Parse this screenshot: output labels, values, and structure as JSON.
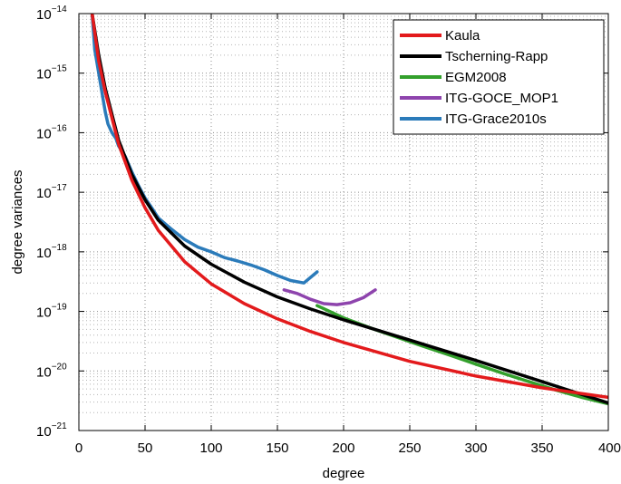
{
  "chart_data": {
    "type": "line",
    "xlabel": "degree",
    "ylabel": "degree variances",
    "xlim": [
      0,
      400
    ],
    "ylim_exponent": [
      -21,
      -14
    ],
    "y_scale": "log",
    "grid": true,
    "legend_placement": "top-right",
    "x_ticks": [
      "0",
      "50",
      "100",
      "150",
      "200",
      "250",
      "300",
      "350",
      "400"
    ],
    "y_ticks": [
      {
        "base": "10",
        "exp": "−14"
      },
      {
        "base": "10",
        "exp": "−15"
      },
      {
        "base": "10",
        "exp": "−16"
      },
      {
        "base": "10",
        "exp": "−17"
      },
      {
        "base": "10",
        "exp": "−18"
      },
      {
        "base": "10",
        "exp": "−19"
      },
      {
        "base": "10",
        "exp": "−20"
      },
      {
        "base": "10",
        "exp": "−21"
      }
    ],
    "series": [
      {
        "name": "Kaula",
        "color": "#e31a1c",
        "x": [
          10,
          15,
          20,
          30,
          40,
          50,
          60,
          80,
          100,
          125,
          150,
          175,
          200,
          250,
          300,
          350,
          400
        ],
        "y": [
          1e-14,
          1.6e-15,
          4.8e-16,
          6.5e-17,
          1.6e-17,
          5.5e-18,
          2.3e-18,
          6.8e-19,
          2.9e-19,
          1.35e-19,
          7.5e-20,
          4.6e-20,
          3e-20,
          1.45e-20,
          8.2e-21,
          5.2e-21,
          3.6e-21
        ]
      },
      {
        "name": "Tscherning-Rapp",
        "color": "#000000",
        "x": [
          10,
          15,
          20,
          30,
          40,
          50,
          60,
          80,
          100,
          125,
          150,
          175,
          200,
          250,
          300,
          350,
          400
        ],
        "y": [
          1e-14,
          2e-15,
          5.5e-16,
          7.5e-17,
          2e-17,
          7.5e-18,
          3.4e-18,
          1.25e-18,
          6.2e-19,
          3.1e-19,
          1.75e-19,
          1.1e-19,
          7.2e-20,
          3.3e-20,
          1.5e-20,
          6.6e-21,
          2.9e-21
        ]
      },
      {
        "name": "EGM2008",
        "color": "#33a02c",
        "x": [
          180,
          200,
          220,
          240,
          260,
          280,
          300,
          320,
          340,
          360,
          380,
          400
        ],
        "y": [
          1.25e-19,
          7.8e-20,
          5.3e-20,
          3.7e-20,
          2.6e-20,
          1.85e-20,
          1.3e-20,
          9.2e-21,
          6.6e-21,
          4.8e-21,
          3.6e-21,
          2.8e-21
        ]
      },
      {
        "name": "ITG-GOCE_MOP1",
        "color": "#8e44ad",
        "x": [
          155,
          165,
          175,
          185,
          195,
          205,
          215,
          224
        ],
        "y": [
          2.3e-19,
          2e-19,
          1.6e-19,
          1.35e-19,
          1.3e-19,
          1.4e-19,
          1.7e-19,
          2.3e-19
        ]
      },
      {
        "name": "ITG-Grace2010s",
        "color": "#2b7bba",
        "x": [
          10,
          12,
          15,
          18,
          20,
          22,
          25,
          28,
          30,
          35,
          40,
          45,
          50,
          55,
          60,
          70,
          80,
          90,
          100,
          110,
          120,
          130,
          140,
          150,
          160,
          170,
          180
        ],
        "y": [
          1e-14,
          2.5e-15,
          1e-15,
          4e-16,
          2.2e-16,
          1.4e-16,
          1e-16,
          8e-17,
          6e-17,
          4e-17,
          2.2e-17,
          1.3e-17,
          8e-18,
          5.5e-18,
          3.7e-18,
          2.4e-18,
          1.6e-18,
          1.2e-18,
          1e-18,
          8e-19,
          7e-19,
          6e-19,
          5e-19,
          4e-19,
          3.3e-19,
          3e-19,
          4.6e-19
        ]
      }
    ]
  }
}
